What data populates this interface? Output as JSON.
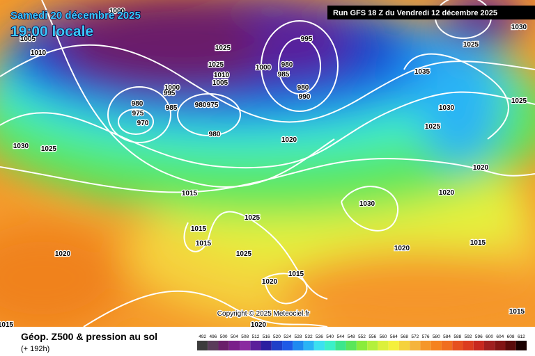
{
  "header": {
    "date": "Samedi 20 décembre 2025",
    "time": "19:00 locale",
    "run": "Run GFS 18 Z du Vendredi 12 décembre 2025"
  },
  "map": {
    "copyright": "Copyright © 2025 Meteociel.fr",
    "isobar_labels": [
      1000,
      1005,
      1010,
      1025,
      1025,
      1010,
      1005,
      1000,
      995,
      985,
      980,
      975,
      980,
      975,
      970,
      980,
      995,
      1000,
      980,
      985,
      980,
      990,
      1025,
      1030,
      1035,
      1030,
      1025,
      1025,
      1020,
      1020,
      1030,
      1025,
      1020,
      1015,
      1015,
      1015,
      1025,
      1025,
      1030,
      1020,
      1015,
      1015,
      1020,
      1020,
      1020,
      1015,
      1015
    ]
  },
  "footer": {
    "title": "Géop. Z500 & pression au sol",
    "lead": "(+ 192h)",
    "scale": {
      "values": [
        492,
        496,
        500,
        504,
        508,
        512,
        516,
        520,
        524,
        528,
        532,
        536,
        540,
        544,
        548,
        552,
        556,
        560,
        564,
        568,
        572,
        576,
        580,
        584,
        588,
        592,
        596,
        600,
        604,
        608,
        612
      ],
      "colors": [
        "#3c3c3c",
        "#5a3c5a",
        "#6a1f6a",
        "#7a1f8a",
        "#8a2aa0",
        "#5a1f9a",
        "#2c1fa0",
        "#1f3fc8",
        "#1f5ae6",
        "#1f8af0",
        "#2ab4f5",
        "#3ce0f0",
        "#3cf0c8",
        "#3ce68c",
        "#5ae65a",
        "#8aec3c",
        "#b4f03c",
        "#dcf03c",
        "#f5f03c",
        "#f5d23c",
        "#f5b43c",
        "#f5962a",
        "#f5821f",
        "#f06e1f",
        "#e6501f",
        "#dc3c1f",
        "#c8281f",
        "#a01f1f",
        "#821414",
        "#5a0a0a",
        "#1a0000"
      ]
    }
  }
}
